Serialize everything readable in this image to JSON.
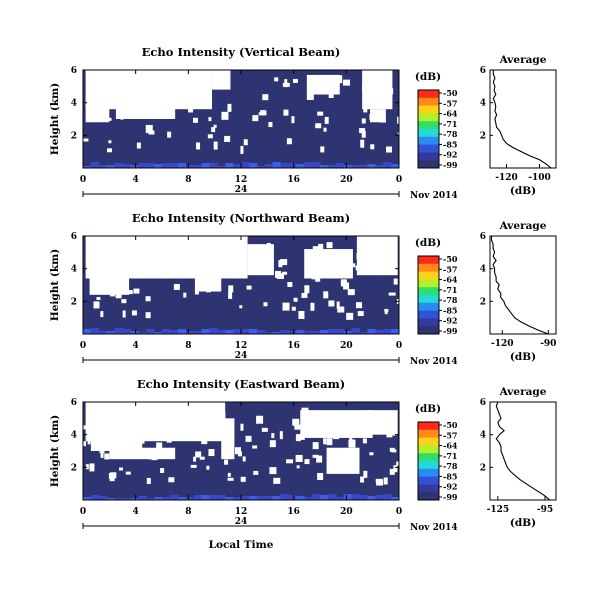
{
  "colors": {
    "background_echo": "#2e3472",
    "surface_echo": "#3a46c8",
    "no_data": "#ffffff",
    "colormap": [
      "#ff2a1a",
      "#ff8a1a",
      "#ffd21a",
      "#b4f02a",
      "#2ee06a",
      "#22d8d8",
      "#2a8cf0",
      "#2f52d6",
      "#343a9a",
      "#2e3472"
    ]
  },
  "colorbar": {
    "unit": "(dB)",
    "ticks": [
      "-50",
      "-57",
      "-64",
      "-71",
      "-78",
      "-85",
      "-92",
      "-99"
    ]
  },
  "date_label": "Nov 2014",
  "day_tick": "24",
  "xlabel": "Local Time",
  "chart_data": [
    {
      "type": "heatmap",
      "title": "Echo Intensity (Vertical Beam)",
      "ylabel": "Height (km)",
      "x_ticks": [
        "0",
        "4",
        "8",
        "12",
        "16",
        "20",
        "0"
      ],
      "y_ticks": [
        "6",
        "4",
        "2"
      ],
      "x_range_hours": [
        0,
        24
      ],
      "y_range_km": [
        0,
        6
      ],
      "profile": {
        "title": "Average",
        "xlabel": "(dB)",
        "x_ticks": [
          "-120",
          "-100"
        ],
        "xlim": [
          -130,
          -90
        ],
        "y_ticks": [
          "6",
          "4",
          "2"
        ],
        "height_km": [
          0,
          0.25,
          0.5,
          0.75,
          1,
          1.25,
          1.5,
          1.75,
          2,
          2.25,
          2.5,
          2.75,
          3,
          3.25,
          3.5,
          3.75,
          4,
          4.25,
          4.5,
          4.75,
          5,
          5.25,
          5.5,
          5.75,
          6
        ],
        "values_db": [
          -93,
          -96,
          -100,
          -106,
          -111,
          -116,
          -120,
          -122,
          -123,
          -124,
          -126,
          -126.5,
          -127,
          -126,
          -127,
          -126.5,
          -127,
          -128,
          -126.5,
          -127.5,
          -127,
          -128,
          -127,
          -128,
          -128
        ]
      }
    },
    {
      "type": "heatmap",
      "title": "Echo Intensity (Northward Beam)",
      "ylabel": "Height (km)",
      "x_ticks": [
        "0",
        "4",
        "8",
        "12",
        "16",
        "20",
        "0"
      ],
      "y_ticks": [
        "6",
        "4",
        "2"
      ],
      "x_range_hours": [
        0,
        24
      ],
      "y_range_km": [
        0,
        6
      ],
      "profile": {
        "title": "Average",
        "xlabel": "(dB)",
        "x_ticks": [
          "-120",
          "-90"
        ],
        "xlim": [
          -128,
          -85
        ],
        "y_ticks": [
          "6",
          "4",
          "2"
        ],
        "height_km": [
          0,
          0.25,
          0.5,
          0.75,
          1,
          1.25,
          1.5,
          1.75,
          2,
          2.25,
          2.5,
          2.75,
          3,
          3.25,
          3.5,
          3.75,
          4,
          4.25,
          4.5,
          4.75,
          5,
          5.25,
          5.5,
          5.75,
          6
        ],
        "values_db": [
          -90,
          -97,
          -103,
          -108,
          -112,
          -114,
          -116,
          -118,
          -119,
          -121,
          -121,
          -123,
          -122,
          -124,
          -124,
          -125,
          -125,
          -126,
          -124,
          -126,
          -125,
          -126,
          -126,
          -127,
          -127
        ]
      }
    },
    {
      "type": "heatmap",
      "title": "Echo Intensity (Eastward Beam)",
      "ylabel": "Height (km)",
      "x_ticks": [
        "0",
        "4",
        "8",
        "12",
        "16",
        "20",
        "0"
      ],
      "y_ticks": [
        "6",
        "4",
        "2"
      ],
      "x_range_hours": [
        0,
        24
      ],
      "y_range_km": [
        0,
        6
      ],
      "profile": {
        "title": "Average",
        "xlabel": "(dB)",
        "x_ticks": [
          "-125",
          "-95"
        ],
        "xlim": [
          -130,
          -88
        ],
        "y_ticks": [
          "6",
          "4",
          "2"
        ],
        "height_km": [
          0,
          0.25,
          0.5,
          0.75,
          1,
          1.25,
          1.5,
          1.75,
          2,
          2.25,
          2.5,
          2.75,
          3,
          3.25,
          3.5,
          3.75,
          4,
          4.25,
          4.5,
          4.75,
          5,
          5.25,
          5.5,
          5.75,
          6
        ],
        "values_db": [
          -92,
          -95,
          -99,
          -103,
          -107,
          -111,
          -114,
          -117,
          -119,
          -120,
          -121,
          -122,
          -123,
          -123,
          -124,
          -126,
          -124,
          -121,
          -124,
          -125,
          -123,
          -124,
          -125,
          -126,
          -125
        ]
      }
    }
  ]
}
